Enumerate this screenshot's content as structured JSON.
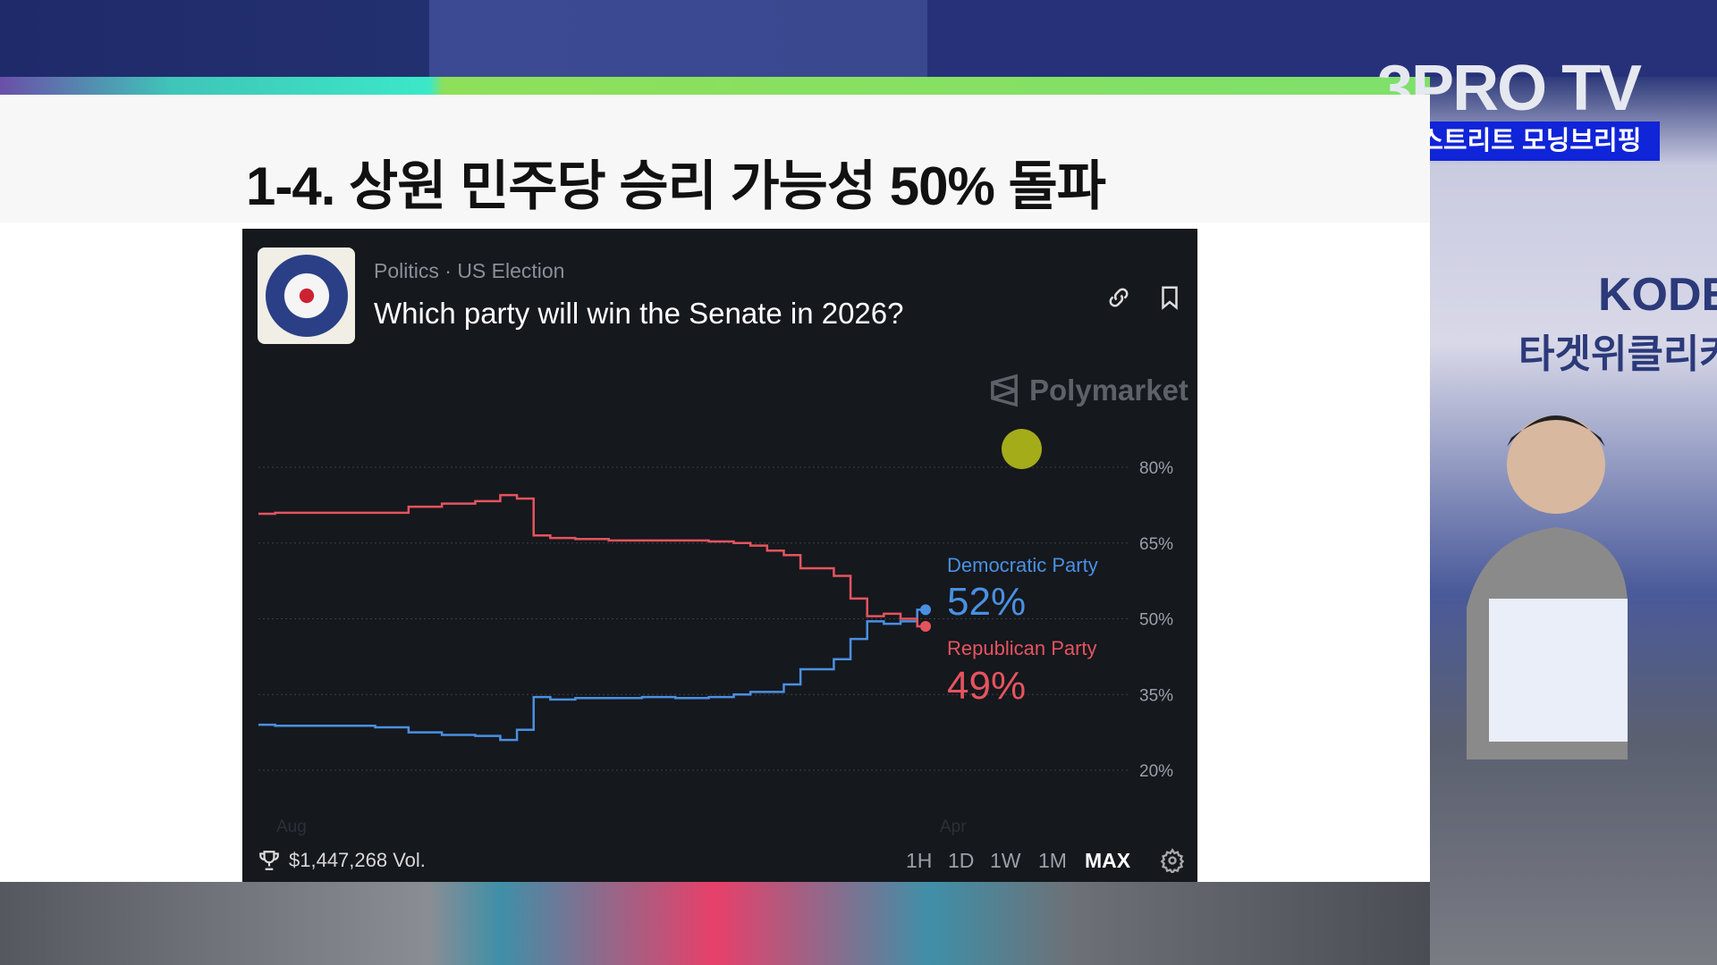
{
  "broadcast": {
    "slide_title": "1-4. 상원 민주당 승리 가능성 50% 돌파",
    "channel_logo": "3PRO TV",
    "show_name": "월스트리트 모닝브리핑",
    "backdrop_text_1": "KODE",
    "backdrop_text_2": "타겟위클리커"
  },
  "card": {
    "category": "Politics",
    "subcategory": "US Election",
    "separator": "·",
    "question": "Which party will win the Senate in 2026?",
    "brand": "Polymarket",
    "volume": "$1,447,268 Vol.",
    "timeframes": [
      "1H",
      "1D",
      "1W",
      "1M",
      "MAX"
    ],
    "active_timeframe": "MAX",
    "icons": [
      "link-icon",
      "bookmark-icon",
      "trophy-icon",
      "gear-icon"
    ]
  },
  "chart_data": {
    "type": "line",
    "ylim": [
      20,
      80
    ],
    "yticks": [
      "80%",
      "65%",
      "50%",
      "35%",
      "20%"
    ],
    "xticks": [
      "Aug",
      "Apr"
    ],
    "grid": true,
    "series": [
      {
        "name": "Democratic Party",
        "current": "52%",
        "color": "#4a90e2",
        "values": [
          29,
          28.8,
          28.8,
          28.8,
          28.5,
          27.5,
          27,
          26.8,
          26,
          28,
          34.5,
          34,
          34.3,
          34.3,
          34.5,
          34.3,
          34.5,
          35,
          35.5,
          35.5,
          37,
          40,
          40,
          42,
          46,
          49.5,
          49,
          49.5,
          51.8
        ]
      },
      {
        "name": "Republican Party",
        "current": "49%",
        "color": "#e5545e",
        "values": [
          70.8,
          71,
          71,
          71,
          71,
          72.2,
          72.8,
          73.3,
          74.5,
          73.8,
          66.5,
          66,
          65.8,
          65.5,
          65.5,
          65.5,
          65.3,
          65,
          64.5,
          63.5,
          62.6,
          60,
          60,
          58.5,
          54,
          50.5,
          51,
          50,
          48.5
        ]
      }
    ]
  }
}
